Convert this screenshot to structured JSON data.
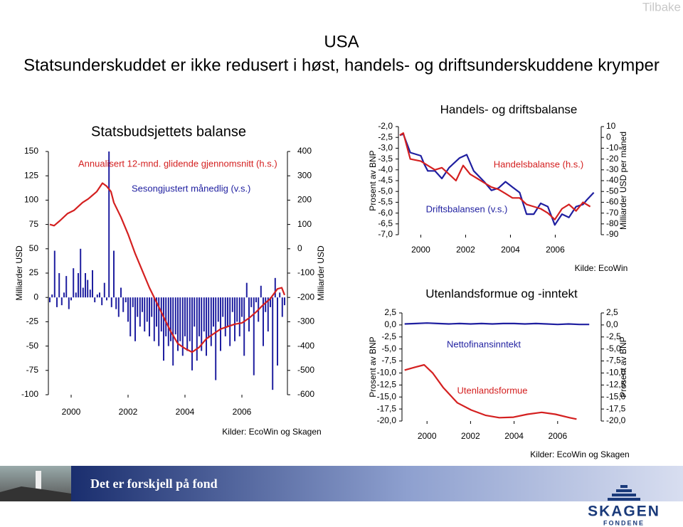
{
  "header": {
    "link": "Tilbake",
    "title": "USA",
    "subtitle": "Statsunderskuddet er ikke redusert i høst, handels- og driftsunderskuddene krymper"
  },
  "footer": {
    "banner_text": "Det er forskjell på fond",
    "logo": "SKAGEN",
    "logo_sub": "FONDENE"
  },
  "chart_data": [
    {
      "type": "combo",
      "title": "Statsbudsjettets balanse",
      "ylabel": "Milliarder USD",
      "y2label": "Milliarder USD",
      "source": "Kilder: EcoWin og Skagen",
      "xlim": [
        1999.2,
        2007.6
      ],
      "xticks": [
        2000,
        2002,
        2004,
        2006
      ],
      "ylim": [
        -100,
        150
      ],
      "yticks": [
        150,
        125,
        100,
        75,
        50,
        25,
        0,
        -25,
        -50,
        -75,
        -100
      ],
      "y2lim": [
        -600,
        400
      ],
      "y2ticks": [
        400,
        300,
        200,
        100,
        0,
        -100,
        -200,
        -300,
        -400,
        -500,
        -600
      ],
      "annotations": [
        {
          "text": "Annualisert 12-mnd. glidende gjennomsnitt (h.s.)",
          "color": "#d42020"
        },
        {
          "text": "Sesongjustert månedlig (v.s.)",
          "color": "#1f1fa0"
        }
      ],
      "series": [
        {
          "type": "bar",
          "color": "#1f1fa0",
          "x": [
            1999.25,
            1999.33,
            1999.42,
            1999.5,
            1999.58,
            1999.67,
            1999.75,
            1999.83,
            1999.92,
            2000.0,
            2000.08,
            2000.17,
            2000.25,
            2000.33,
            2000.42,
            2000.5,
            2000.58,
            2000.67,
            2000.75,
            2000.83,
            2000.92,
            2001.0,
            2001.08,
            2001.17,
            2001.25,
            2001.33,
            2001.42,
            2001.5,
            2001.58,
            2001.67,
            2001.75,
            2001.83,
            2001.92,
            2002.0,
            2002.08,
            2002.17,
            2002.25,
            2002.33,
            2002.42,
            2002.5,
            2002.58,
            2002.67,
            2002.75,
            2002.83,
            2002.92,
            2003.0,
            2003.08,
            2003.17,
            2003.25,
            2003.33,
            2003.42,
            2003.5,
            2003.58,
            2003.67,
            2003.75,
            2003.83,
            2003.92,
            2004.0,
            2004.08,
            2004.17,
            2004.25,
            2004.33,
            2004.42,
            2004.5,
            2004.58,
            2004.67,
            2004.75,
            2004.83,
            2004.92,
            2005.0,
            2005.08,
            2005.17,
            2005.25,
            2005.33,
            2005.42,
            2005.5,
            2005.58,
            2005.67,
            2005.75,
            2005.83,
            2005.92,
            2006.0,
            2006.08,
            2006.17,
            2006.25,
            2006.33,
            2006.42,
            2006.5,
            2006.58,
            2006.67,
            2006.75,
            2006.83,
            2006.92,
            2007.0,
            2007.08,
            2007.17,
            2007.25,
            2007.33,
            2007.42,
            2007.5
          ],
          "values": [
            -5,
            3,
            48,
            -10,
            25,
            -8,
            5,
            22,
            -12,
            -3,
            30,
            5,
            25,
            50,
            10,
            25,
            18,
            8,
            28,
            -5,
            3,
            5,
            -8,
            15,
            -3,
            150,
            -10,
            48,
            -12,
            -20,
            10,
            -15,
            -5,
            -25,
            -40,
            -10,
            -45,
            -20,
            -30,
            -15,
            -35,
            -25,
            -40,
            -20,
            -45,
            -30,
            -50,
            -35,
            -65,
            -40,
            -50,
            -45,
            -70,
            -38,
            -55,
            -45,
            -60,
            -40,
            -55,
            -45,
            -75,
            -30,
            -65,
            -40,
            -55,
            -35,
            -60,
            -42,
            -50,
            -30,
            -85,
            -25,
            -55,
            -20,
            -40,
            -30,
            -50,
            -15,
            -45,
            -25,
            -40,
            -20,
            -60,
            15,
            -35,
            -10,
            -80,
            -5,
            -25,
            12,
            -50,
            -15,
            -35,
            -10,
            -95,
            20,
            -70,
            5,
            -20,
            -8
          ]
        },
        {
          "type": "line",
          "axis": "y2",
          "color": "#d42020",
          "x": [
            1999.25,
            1999.4,
            1999.6,
            1999.875,
            2000.1,
            2000.4,
            2000.6,
            2000.9,
            2001.1,
            2001.25,
            2001.4,
            2001.5,
            2001.75,
            2002.0,
            2002.25,
            2002.5,
            2002.75,
            2003.0,
            2003.25,
            2003.5,
            2003.75,
            2004.0,
            2004.25,
            2004.5,
            2004.75,
            2005.0,
            2005.25,
            2005.5,
            2005.75,
            2006.0,
            2006.25,
            2006.5,
            2006.75,
            2007.0,
            2007.25,
            2007.4,
            2007.5
          ],
          "values": [
            100,
            95,
            115,
            145,
            158,
            190,
            205,
            235,
            270,
            257,
            235,
            190,
            130,
            60,
            -20,
            -90,
            -160,
            -220,
            -280,
            -340,
            -390,
            -410,
            -425,
            -405,
            -370,
            -350,
            -330,
            -320,
            -310,
            -305,
            -285,
            -260,
            -230,
            -205,
            -165,
            -160,
            -190
          ]
        }
      ]
    },
    {
      "type": "line",
      "title": "Handels- og driftsbalanse",
      "ylabel": "Prosent av BNP",
      "y2label": "Milliarder USD per måned",
      "source": "Kilde: EcoWin",
      "xlim": [
        1999.0,
        2008.05
      ],
      "xticks": [
        2000,
        2002,
        2004,
        2006
      ],
      "ylim": [
        -7,
        -2
      ],
      "yticks": [
        {
          "value": -2,
          "label": "-2,0"
        },
        {
          "value": -2.5,
          "label": "-2,5"
        },
        {
          "value": -3,
          "label": "-3,0"
        },
        {
          "value": -3.5,
          "label": "-3,5"
        },
        {
          "value": -4,
          "label": "-4,0"
        },
        {
          "value": -4.5,
          "label": "-4,5"
        },
        {
          "value": -5,
          "label": "-5,0"
        },
        {
          "value": -5.5,
          "label": "-5,5"
        },
        {
          "value": -6,
          "label": "-6,0"
        },
        {
          "value": -6.5,
          "label": "-6,5"
        },
        {
          "value": -7,
          "label": "-7,0"
        }
      ],
      "y2lim": [
        -90,
        10
      ],
      "y2ticks": [
        10,
        0,
        -10,
        -20,
        -30,
        -40,
        -50,
        -60,
        -70,
        -80,
        -90
      ],
      "annotations": [
        {
          "text": "Handelsbalanse (h.s.)",
          "color": "#d42020"
        },
        {
          "text": "Driftsbalansen (v.s.)",
          "color": "#1f1fa0"
        }
      ],
      "series": [
        {
          "type": "line",
          "axis": "y2",
          "color": "#1f1fa0",
          "x": [
            1999.06,
            1999.22,
            1999.53,
            2000.0,
            2000.16,
            2000.31,
            2000.63,
            2000.94,
            2001.26,
            2001.73,
            2002.05,
            2002.36,
            2002.83,
            2003.15,
            2003.46,
            2003.78,
            2004.09,
            2004.41,
            2004.72,
            2005.04,
            2005.35,
            2005.67,
            2005.98,
            2006.3,
            2006.61,
            2006.93,
            2007.24,
            2007.4,
            2007.72
          ],
          "values": [
            2,
            3,
            -14,
            -17,
            -25,
            -31,
            -31,
            -38,
            -28,
            -19,
            -16,
            -31,
            -41,
            -49,
            -47,
            -41,
            -46,
            -51,
            -71,
            -71,
            -61,
            -64,
            -81,
            -71,
            -74,
            -64,
            -62,
            -58,
            -51
          ]
        },
        {
          "type": "line",
          "color": "#d42020",
          "x": [
            1999.06,
            1999.22,
            1999.53,
            2000.0,
            2000.31,
            2000.63,
            2000.94,
            2001.26,
            2001.57,
            2001.89,
            2002.2,
            2002.52,
            2002.83,
            2003.15,
            2003.46,
            2003.78,
            2004.09,
            2004.41,
            2004.72,
            2005.04,
            2005.35,
            2005.67,
            2005.98,
            2006.3,
            2006.61,
            2006.93,
            2007.24,
            2007.56
          ],
          "values": [
            -2.4,
            -2.3,
            -3.5,
            -3.6,
            -3.8,
            -4.0,
            -3.9,
            -4.2,
            -4.5,
            -3.8,
            -4.2,
            -4.4,
            -4.6,
            -4.8,
            -4.9,
            -5.1,
            -5.3,
            -5.3,
            -5.6,
            -5.7,
            -5.8,
            -6.0,
            -6.3,
            -5.8,
            -5.6,
            -5.9,
            -5.5,
            -5.7
          ]
        }
      ]
    },
    {
      "type": "line",
      "title": "Utenlandsformue og -inntekt",
      "ylabel": "Prosent av BNP",
      "y2label": "Prosent av BNP",
      "source": "Kilder: EcoWin og Skagen",
      "xlim": [
        1998.85,
        2008.0
      ],
      "xticks": [
        2000,
        2002,
        2004,
        2006
      ],
      "ylim": [
        -20,
        2.5
      ],
      "yticks": [
        {
          "value": 2.5,
          "label": "2,5"
        },
        {
          "value": 0,
          "label": "0,0"
        },
        {
          "value": -2.5,
          "label": "-2,5"
        },
        {
          "value": -5,
          "label": "-5,0"
        },
        {
          "value": -7.5,
          "label": "-7,5"
        },
        {
          "value": -10,
          "label": "-10,0"
        },
        {
          "value": -12.5,
          "label": "-12,5"
        },
        {
          "value": -15,
          "label": "-15,0"
        },
        {
          "value": -17.5,
          "label": "-17,5"
        },
        {
          "value": -20,
          "label": "-20,0"
        }
      ],
      "y2lim": [
        -20,
        2.5
      ],
      "y2ticks": [
        {
          "value": 2.5,
          "label": "2,5"
        },
        {
          "value": 0,
          "label": "0,0"
        },
        {
          "value": -2.5,
          "label": "-2,5"
        },
        {
          "value": -5,
          "label": "-5,0"
        },
        {
          "value": -7.5,
          "label": "-7,5"
        },
        {
          "value": -10,
          "label": "-10,0"
        },
        {
          "value": -12.5,
          "label": "-12,5"
        },
        {
          "value": -15,
          "label": "-15,0"
        },
        {
          "value": -17.5,
          "label": "-17,5"
        },
        {
          "value": -20,
          "label": "-20,0"
        }
      ],
      "annotations": [
        {
          "text": "Nettofinansinntekt",
          "color": "#1f1fa0"
        },
        {
          "text": "Utenlandsformue",
          "color": "#d42020"
        }
      ],
      "series": [
        {
          "type": "line",
          "color": "#1f1fa0",
          "x": [
            1998.97,
            1999.5,
            2000.0,
            2000.5,
            2001.0,
            2001.5,
            2002.0,
            2002.5,
            2003.0,
            2003.5,
            2004.0,
            2004.5,
            2005.0,
            2005.5,
            2006.0,
            2006.5,
            2007.0,
            2007.45
          ],
          "values": [
            0.2,
            0.3,
            0.4,
            0.3,
            0.2,
            0.3,
            0.2,
            0.3,
            0.2,
            0.3,
            0.3,
            0.2,
            0.3,
            0.2,
            0.1,
            0.2,
            0.1,
            0.1
          ]
        },
        {
          "type": "line",
          "color": "#d42020",
          "x": [
            1998.97,
            1999.45,
            1999.87,
            2000.26,
            2000.74,
            2001.39,
            2002.03,
            2002.68,
            2003.32,
            2003.97,
            2004.61,
            2005.26,
            2005.9,
            2006.55,
            2006.87
          ],
          "values": [
            -9.4,
            -8.8,
            -8.3,
            -10,
            -13,
            -16.2,
            -17.7,
            -18.8,
            -19.3,
            -19.2,
            -18.6,
            -18.2,
            -18.6,
            -19.3,
            -19.6
          ]
        }
      ]
    }
  ]
}
